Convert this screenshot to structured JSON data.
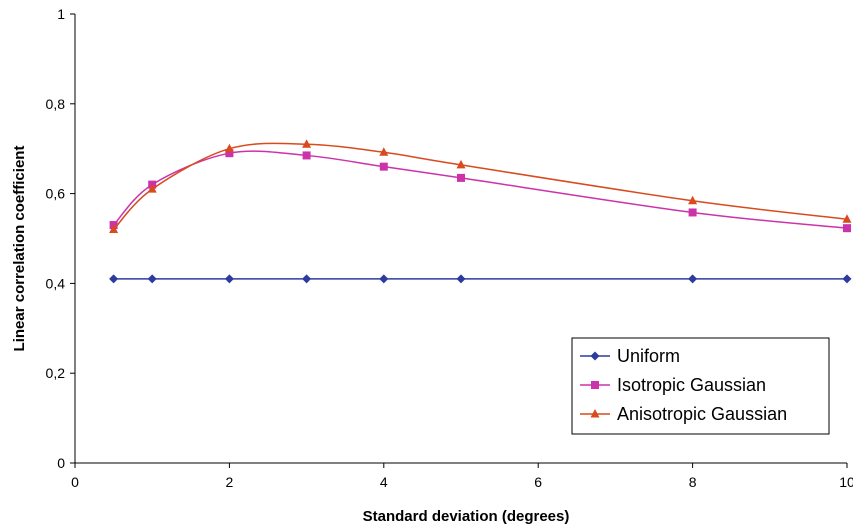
{
  "chart_data": {
    "type": "line",
    "title": "",
    "xlabel": "Standard deviation (degrees)",
    "ylabel": "Linear correlation coefficient",
    "xlim": [
      0,
      10
    ],
    "ylim": [
      0,
      1
    ],
    "xticks": [
      0,
      2,
      4,
      6,
      8,
      10
    ],
    "yticks": [
      0,
      0.2,
      0.4,
      0.6,
      0.8,
      1
    ],
    "xtick_labels": [
      "0",
      "2",
      "4",
      "6",
      "8",
      "10"
    ],
    "ytick_labels": [
      "0",
      "0,2",
      "0,4",
      "0,6",
      "0,8",
      "1"
    ],
    "grid": false,
    "legend_position": "bottom-right",
    "x": [
      0.5,
      1,
      2,
      3,
      4,
      5,
      8,
      10
    ],
    "series": [
      {
        "name": "Uniform",
        "color": "#2c3ba0",
        "marker": "diamond",
        "values": [
          0.41,
          0.41,
          0.41,
          0.41,
          0.41,
          0.41,
          0.41,
          0.41
        ]
      },
      {
        "name": "Isotropic Gaussian",
        "color": "#cc33aa",
        "marker": "square",
        "values": [
          0.53,
          0.62,
          0.69,
          0.685,
          0.66,
          0.635,
          0.558,
          0.523
        ]
      },
      {
        "name": "Anisotropic Gaussian",
        "color": "#d94a1e",
        "marker": "triangle",
        "values": [
          0.52,
          0.61,
          0.7,
          0.71,
          0.692,
          0.664,
          0.584,
          0.543
        ]
      }
    ]
  }
}
